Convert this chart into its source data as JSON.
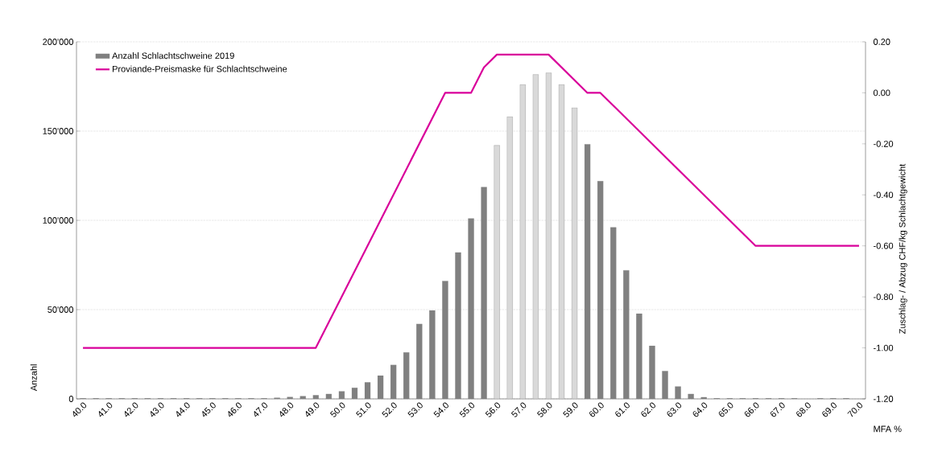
{
  "chart_data": {
    "type": "bar",
    "xlabel": "MFA %",
    "ylabel": "Anzahl",
    "y2label": "Zuschlag- / Abzug CHF/kg Schlachtgewicht",
    "x": [
      40,
      40.5,
      41,
      41.5,
      42,
      42.5,
      43,
      43.5,
      44,
      44.5,
      45,
      45.5,
      46,
      46.5,
      47,
      47.5,
      48,
      48.5,
      49,
      49.5,
      50,
      50.5,
      51,
      51.5,
      52,
      52.5,
      53,
      53.5,
      54,
      54.5,
      55,
      55.5,
      56,
      56.5,
      57,
      57.5,
      58,
      58.5,
      59,
      59.5,
      60,
      60.5,
      61,
      61.5,
      62,
      62.5,
      63,
      63.5,
      64,
      64.5,
      65,
      65.5,
      66,
      66.5,
      67,
      67.5,
      68.5,
      69,
      69.5
    ],
    "xlim": [
      39.75,
      70.25
    ],
    "xticks": [
      {
        "value": 40,
        "label": "40.0"
      },
      {
        "value": 41,
        "label": "41.0"
      },
      {
        "value": 42,
        "label": "42.0"
      },
      {
        "value": 43,
        "label": "43.0"
      },
      {
        "value": 44,
        "label": "44.0"
      },
      {
        "value": 45,
        "label": "45.0"
      },
      {
        "value": 46,
        "label": "46.0"
      },
      {
        "value": 47,
        "label": "47.0"
      },
      {
        "value": 48,
        "label": "48.0"
      },
      {
        "value": 49,
        "label": "49.0"
      },
      {
        "value": 50,
        "label": "50.0"
      },
      {
        "value": 51,
        "label": "51.0"
      },
      {
        "value": 52,
        "label": "52.0"
      },
      {
        "value": 53,
        "label": "53.0"
      },
      {
        "value": 54,
        "label": "54.0"
      },
      {
        "value": 55,
        "label": "55.0"
      },
      {
        "value": 56,
        "label": "56.0"
      },
      {
        "value": 57,
        "label": "57.0"
      },
      {
        "value": 58,
        "label": "58.0"
      },
      {
        "value": 59,
        "label": "59.0"
      },
      {
        "value": 60,
        "label": "60.0"
      },
      {
        "value": 61,
        "label": "61.0"
      },
      {
        "value": 62,
        "label": "62.0"
      },
      {
        "value": 63,
        "label": "63.0"
      },
      {
        "value": 64,
        "label": "64.0"
      },
      {
        "value": 65,
        "label": "65.0"
      },
      {
        "value": 66,
        "label": "66.0"
      },
      {
        "value": 67,
        "label": "67.0"
      },
      {
        "value": 68,
        "label": "68.0"
      },
      {
        "value": 69,
        "label": "69.0"
      },
      {
        "value": 70,
        "label": "70.0"
      }
    ],
    "ylim": [
      0,
      200000
    ],
    "yticks": [
      0,
      {
        "value": 50000,
        "label": "50'000"
      },
      {
        "value": 100000,
        "label": "100'000"
      },
      {
        "value": 150000,
        "label": "150'000"
      },
      {
        "value": 200000,
        "label": "200'000"
      }
    ],
    "y2lim": [
      -1.2,
      0.2
    ],
    "y2ticks": [
      {
        "value": -1.2,
        "label": "-1.20"
      },
      {
        "value": -1.0,
        "label": "-1.00"
      },
      {
        "value": -0.8,
        "label": "-0.80"
      },
      {
        "value": -0.6,
        "label": "-0.60"
      },
      {
        "value": -0.4,
        "label": "-0.40"
      },
      {
        "value": -0.2,
        "label": "-0.20"
      },
      {
        "value": 0,
        "label": "0.00"
      },
      {
        "value": 0.2,
        "label": "0.20"
      }
    ],
    "grid": "y",
    "legend": "top left",
    "series": [
      {
        "name": "Anzahl Schlachtschweine 2019",
        "color": "#808080",
        "colors": [
          "#808080",
          "#808080",
          "#808080",
          "#808080",
          "#808080",
          "#808080",
          "#808080",
          "#808080",
          "#808080",
          "#808080",
          "#808080",
          "#808080",
          "#808080",
          "#808080",
          "#808080",
          "#808080",
          "#808080",
          "#808080",
          "#808080",
          "#808080",
          "#808080",
          "#808080",
          "#808080",
          "#808080",
          "#808080",
          "#808080",
          "#808080",
          "#808080",
          "#808080",
          "#808080",
          "#808080",
          "#808080",
          "#d9d9d9",
          "#d9d9d9",
          "#d9d9d9",
          "#d9d9d9",
          "#d9d9d9",
          "#d9d9d9",
          "#d9d9d9",
          "#808080",
          "#808080",
          "#808080",
          "#808080",
          "#808080",
          "#808080",
          "#808080",
          "#808080",
          "#808080",
          "#808080",
          "#808080",
          "#808080",
          "#808080",
          "#808080",
          "#808080",
          "#808080",
          "#808080",
          "#808080",
          "#808080",
          "#808080"
        ],
        "values": [
          300,
          300,
          300,
          300,
          300,
          300,
          300,
          300,
          300,
          300,
          300,
          300,
          300,
          300,
          300,
          600,
          1000,
          1500,
          2000,
          2700,
          4200,
          6200,
          9200,
          13000,
          19000,
          26000,
          42000,
          49500,
          66000,
          82000,
          101000,
          118600,
          142000,
          158000,
          176000,
          181700,
          182600,
          176000,
          163000,
          142600,
          122000,
          96000,
          72000,
          47700,
          29700,
          15500,
          6900,
          2700,
          900,
          300,
          300,
          300,
          300,
          300,
          300,
          300,
          300,
          300,
          300
        ]
      },
      {
        "name": "Proviande-Preismaske für Schlachtschweine",
        "type": "line",
        "axis": "y2",
        "color": "#d9009a",
        "x": [
          40,
          49,
          54,
          55,
          55.5,
          56,
          58,
          59.5,
          60,
          66,
          70
        ],
        "values": [
          -1.0,
          -1.0,
          0.0,
          0.0,
          0.1,
          0.15,
          0.15,
          0.0,
          0.0,
          -0.6,
          -0.6
        ]
      }
    ]
  }
}
